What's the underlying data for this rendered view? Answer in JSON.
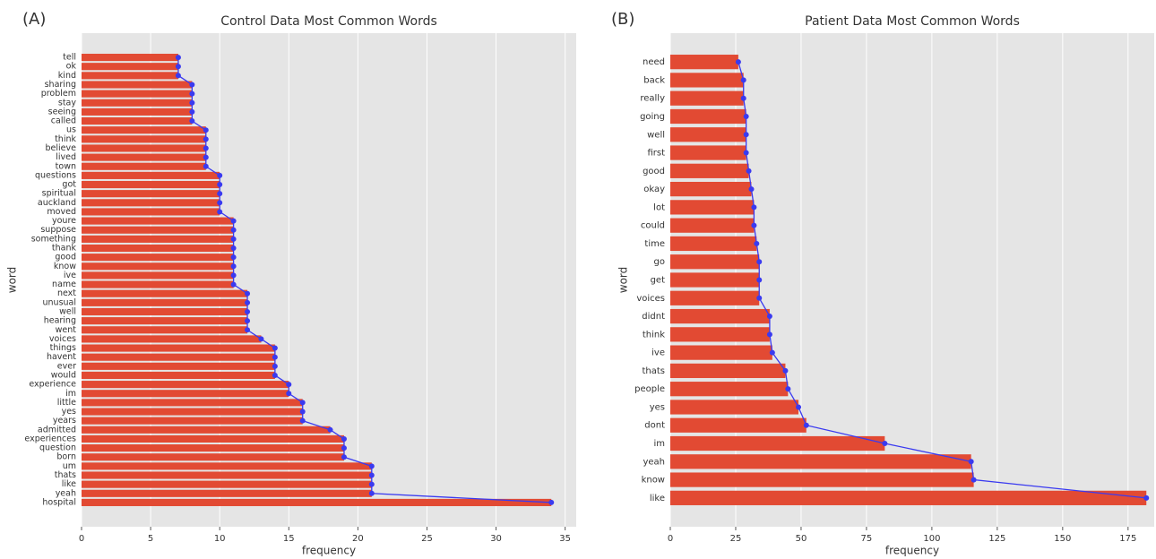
{
  "chart_data": [
    {
      "type": "bar",
      "orientation": "horizontal",
      "label": "(A)",
      "title": "Control Data Most Common Words",
      "xlabel": "frequency",
      "ylabel": "word",
      "categories": [
        "tell",
        "ok",
        "kind",
        "sharing",
        "problem",
        "stay",
        "seeing",
        "called",
        "us",
        "think",
        "believe",
        "lived",
        "town",
        "questions",
        "got",
        "spiritual",
        "auckland",
        "moved",
        "youre",
        "suppose",
        "something",
        "thank",
        "good",
        "know",
        "ive",
        "name",
        "next",
        "unusual",
        "well",
        "hearing",
        "went",
        "voices",
        "things",
        "havent",
        "ever",
        "would",
        "experience",
        "im",
        "little",
        "yes",
        "years",
        "admitted",
        "experiences",
        "question",
        "born",
        "um",
        "thats",
        "like",
        "yeah",
        "hospital"
      ],
      "values": [
        7,
        7,
        7,
        8,
        8,
        8,
        8,
        8,
        9,
        9,
        9,
        9,
        9,
        10,
        10,
        10,
        10,
        10,
        11,
        11,
        11,
        11,
        11,
        11,
        11,
        11,
        12,
        12,
        12,
        12,
        12,
        13,
        14,
        14,
        14,
        14,
        15,
        15,
        16,
        16,
        16,
        18,
        19,
        19,
        19,
        21,
        21,
        21,
        21,
        34
      ],
      "color": "#e24a33",
      "line_color": "#3a3af0",
      "xlim": [
        0,
        35.8
      ],
      "xticks": [
        0,
        5,
        10,
        15,
        20,
        25,
        30,
        35
      ],
      "grid": true
    },
    {
      "type": "bar",
      "orientation": "horizontal",
      "label": "(B)",
      "title": "Patient Data Most Common Words",
      "xlabel": "frequency",
      "ylabel": "word",
      "categories": [
        "need",
        "back",
        "really",
        "going",
        "well",
        "first",
        "good",
        "okay",
        "lot",
        "could",
        "time",
        "go",
        "get",
        "voices",
        "didnt",
        "think",
        "ive",
        "thats",
        "people",
        "yes",
        "dont",
        "im",
        "yeah",
        "know",
        "like"
      ],
      "values": [
        26,
        28,
        28,
        29,
        29,
        29,
        30,
        31,
        32,
        32,
        33,
        34,
        34,
        34,
        38,
        38,
        39,
        44,
        45,
        49,
        52,
        82,
        115,
        116,
        182
      ],
      "color": "#e24a33",
      "line_color": "#3a3af0",
      "xlim": [
        0,
        185
      ],
      "xticks": [
        0,
        25,
        50,
        75,
        100,
        125,
        150,
        175
      ],
      "grid": true
    }
  ]
}
